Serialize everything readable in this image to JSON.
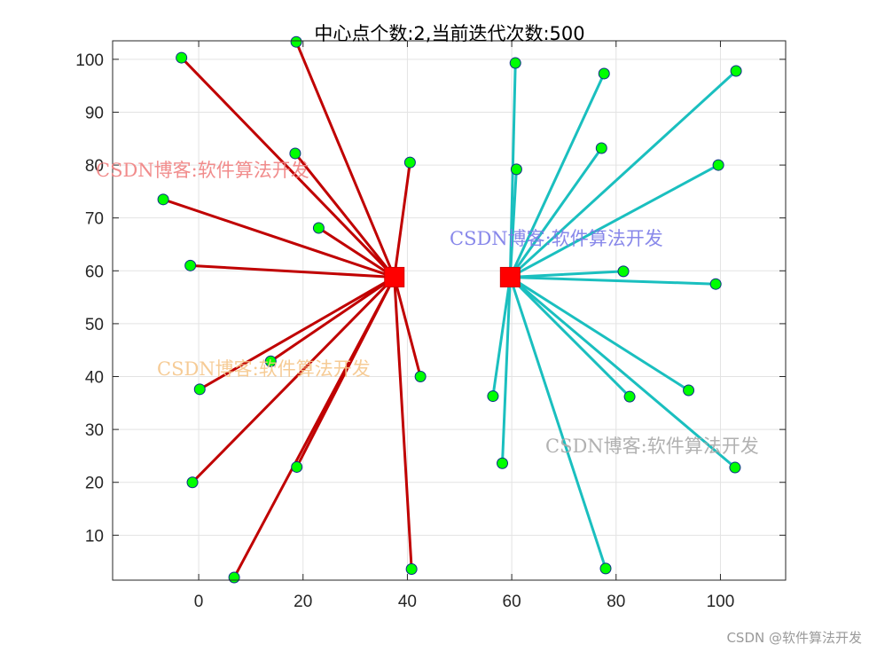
{
  "title": "中心点个数:2,当前迭代次数:500",
  "watermarks": [
    {
      "text": "CSDN博客:软件算法开发",
      "color": "#f08080"
    },
    {
      "text": "CSDN博客:软件算法开发",
      "color": "#7b7be8"
    },
    {
      "text": "CSDN博客:软件算法开发",
      "color": "#f5c58a"
    },
    {
      "text": "CSDN博客:软件算法开发",
      "color": "#a8a8a8"
    }
  ],
  "credit": "CSDN @软件算法开发",
  "chart_data": {
    "type": "scatter",
    "title": "中心点个数:2,当前迭代次数:500",
    "xlim": [
      -16.5,
      112.5
    ],
    "ylim": [
      1.5,
      103.5
    ],
    "xticks": [
      0,
      20,
      40,
      60,
      80,
      100
    ],
    "yticks": [
      10,
      20,
      30,
      40,
      50,
      60,
      70,
      80,
      90,
      100
    ],
    "grid": true,
    "point_color": "#00ff00",
    "point_edge": "#0b2f8a",
    "center_color": "#ff0000",
    "clusters": [
      {
        "color": "#c00000",
        "center": [
          37.5,
          58.8
        ],
        "points": [
          [
            -3.3,
            100.3
          ],
          [
            18.7,
            103.3
          ],
          [
            18.5,
            82.2
          ],
          [
            40.5,
            80.5
          ],
          [
            -6.8,
            73.5
          ],
          [
            23.0,
            68.1
          ],
          [
            -1.6,
            61.0
          ],
          [
            13.8,
            42.9
          ],
          [
            42.5,
            40.0
          ],
          [
            0.2,
            37.6
          ],
          [
            -1.2,
            20.0
          ],
          [
            18.8,
            22.9
          ],
          [
            6.8,
            2.0
          ],
          [
            40.8,
            3.6
          ]
        ]
      },
      {
        "color": "#1abfbf",
        "center": [
          59.7,
          58.8
        ],
        "points": [
          [
            60.7,
            99.3
          ],
          [
            77.7,
            97.3
          ],
          [
            103.0,
            97.8
          ],
          [
            77.2,
            83.2
          ],
          [
            60.9,
            79.2
          ],
          [
            99.6,
            80.0
          ],
          [
            81.4,
            59.9
          ],
          [
            99.1,
            57.5
          ],
          [
            56.4,
            36.3
          ],
          [
            58.2,
            23.6
          ],
          [
            82.6,
            36.2
          ],
          [
            93.9,
            37.4
          ],
          [
            102.8,
            22.8
          ],
          [
            78.0,
            3.7
          ]
        ]
      }
    ]
  }
}
